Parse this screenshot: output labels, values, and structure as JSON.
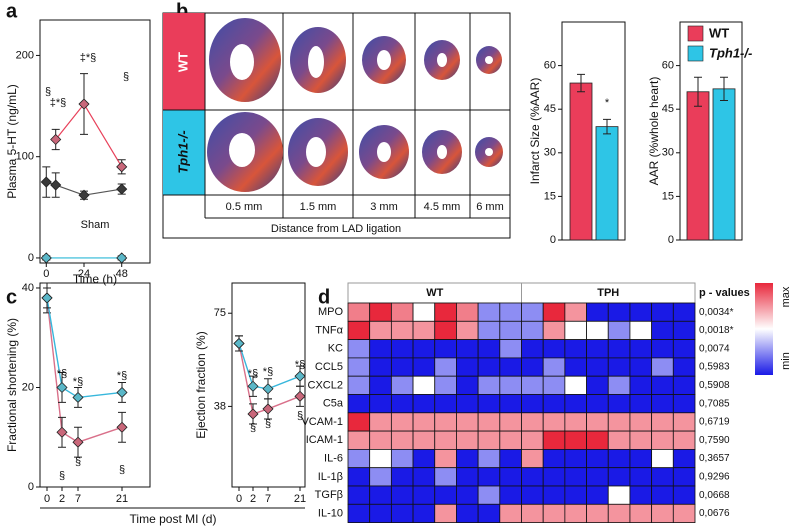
{
  "panel_labels": [
    "a",
    "b",
    "c",
    "d"
  ],
  "heart_panel": {
    "rows": [
      "WT",
      "Tph1-/-"
    ],
    "distances": [
      "0.5 mm",
      "1.5 mm",
      "3 mm",
      "4.5 mm",
      "6 mm"
    ],
    "caption": "Distance from LAD ligation"
  },
  "chart_data": [
    {
      "type": "line",
      "ylabel": "Plasma 5-HT (ng/mL)",
      "xlabel": "Time (h)",
      "xlim": [
        -4,
        66
      ],
      "ylim": [
        -5,
        235
      ],
      "xticks": [
        0,
        24,
        48
      ],
      "yticks": [
        0,
        100,
        200
      ],
      "series": [
        {
          "color": "#555555",
          "marker_color": "#3a3a3a",
          "x": [
            0,
            6,
            24,
            48
          ],
          "values": [
            75,
            72,
            62,
            68
          ],
          "errors": [
            15,
            12,
            4,
            5
          ]
        },
        {
          "color": "#e8415a",
          "marker_color": "#c9677a",
          "x": [
            6,
            24,
            48
          ],
          "values": [
            117,
            152,
            90
          ],
          "errors": [
            10,
            30,
            7
          ]
        },
        {
          "color": "#2bb8d6",
          "marker_color": "#5ab7c8",
          "x": [
            0,
            48
          ],
          "values": [
            0,
            0
          ],
          "errors": [
            2,
            2
          ]
        }
      ],
      "annotations": [
        "§",
        "‡*§",
        "‡*§",
        "§",
        "Sham"
      ]
    },
    {
      "type": "bar",
      "ylabel": "Infarct Size (%AAR)",
      "ylim": [
        0,
        75
      ],
      "yticks": [
        0,
        15,
        30,
        45,
        60
      ],
      "series": [
        {
          "name": "WT",
          "color": "#ea3d5a",
          "values": [
            54
          ],
          "errors": [
            3
          ]
        },
        {
          "name": "Tph1-/-",
          "color": "#2ec5e6",
          "values": [
            39
          ],
          "errors": [
            2.5
          ]
        }
      ],
      "annotations": [
        "*"
      ]
    },
    {
      "type": "bar",
      "ylabel": "AAR (%whole heart)",
      "ylim": [
        0,
        75
      ],
      "yticks": [
        0,
        15,
        30,
        45,
        60
      ],
      "series": [
        {
          "color": "#ea3d5a",
          "values": [
            51
          ],
          "errors": [
            5
          ]
        },
        {
          "color": "#2ec5e6",
          "values": [
            52
          ],
          "errors": [
            4
          ]
        }
      ]
    },
    {
      "type": "catline",
      "ylabel": "Fractional shortening (%)",
      "categories": [
        "0",
        "2",
        "7",
        "21"
      ],
      "ylim": [
        0,
        41
      ],
      "yticks": [
        0,
        20,
        40
      ],
      "series": [
        {
          "color": "#d9708a",
          "marker_color": "#c9677a",
          "values": [
            38,
            11,
            9,
            12
          ],
          "errors": [
            3,
            3,
            3,
            3
          ]
        },
        {
          "color": "#37b7dc",
          "marker_color": "#5ab7c8",
          "values": [
            38,
            20,
            18,
            19
          ],
          "errors": [
            2,
            3,
            2,
            2
          ]
        }
      ],
      "annotations": [
        "*§",
        "*§",
        "*§",
        "§",
        "§",
        "§"
      ]
    },
    {
      "type": "catline",
      "ylabel": "Ejection fraction (%)",
      "categories": [
        "0",
        "2",
        "7",
        "21"
      ],
      "ylim": [
        6,
        87
      ],
      "yticks": [
        38,
        75
      ],
      "series": [
        {
          "color": "#d9708a",
          "marker_color": "#c9677a",
          "values": [
            63,
            35,
            37,
            42
          ],
          "errors": [
            3,
            4,
            4,
            4
          ]
        },
        {
          "color": "#37b7dc",
          "marker_color": "#5ab7c8",
          "values": [
            63,
            46,
            45,
            50
          ],
          "errors": [
            3,
            4,
            4,
            4
          ]
        }
      ],
      "annotations": [
        "*§",
        "*§",
        "*§",
        "§",
        "§",
        "§"
      ],
      "xlabel": "Time post MI (d)"
    },
    {
      "type": "heatmap",
      "groups": [
        "WT",
        "TPH"
      ],
      "rows": [
        "MPO",
        "TNFα",
        "KC",
        "CCL5",
        "CXCL2",
        "C5a",
        "VCAM-1",
        "ICAM-1",
        "IL-6",
        "IL-1β",
        "TGFβ",
        "IL-10"
      ],
      "p_values_title": "p - values",
      "p_values": [
        "0,0034*",
        "0,0018*",
        "0,0074",
        "0,5983",
        "0,5908",
        "0,7085",
        "0,6719",
        "0,7590",
        "0,3657",
        "0,9296",
        "0,0668",
        "0,0676"
      ],
      "zlim": [
        0,
        1
      ],
      "colorbar_ticks": [
        {
          "value": 1,
          "label": "max"
        },
        {
          "value": 0,
          "label": "min"
        }
      ],
      "values": [
        [
          0.8,
          1,
          0.8,
          0.5,
          1,
          0.8,
          0.25,
          0.25,
          0.25,
          1,
          0.75,
          0,
          0,
          0,
          0,
          0
        ],
        [
          1,
          0.75,
          0.75,
          0.75,
          1,
          0.75,
          0.25,
          0.25,
          0.25,
          0.75,
          0.5,
          0.5,
          0.25,
          0.5,
          0,
          0
        ],
        [
          0.25,
          0,
          0,
          0,
          0,
          0,
          0,
          0.25,
          0,
          0,
          0,
          0,
          0,
          0,
          0,
          0
        ],
        [
          0.25,
          0,
          0,
          0,
          0.25,
          0,
          0,
          0,
          0,
          0.25,
          0,
          0,
          0,
          0,
          0.25,
          0
        ],
        [
          0.25,
          0,
          0.25,
          0.5,
          0.25,
          0,
          0.25,
          0.25,
          0.25,
          0.25,
          0.5,
          0,
          0.25,
          0,
          0,
          0
        ],
        [
          0,
          0,
          0,
          0,
          0,
          0,
          0,
          0,
          0,
          0,
          0,
          0,
          0,
          0,
          0,
          0
        ],
        [
          1,
          0.75,
          0.75,
          0.75,
          0.75,
          0.75,
          0.75,
          0.75,
          0.75,
          0.75,
          0.75,
          0.75,
          0.75,
          0.75,
          0.75,
          0.75
        ],
        [
          0.75,
          0.75,
          0.75,
          0.75,
          0.75,
          0.75,
          0.75,
          0.75,
          0.75,
          1,
          1,
          1,
          0.75,
          0.75,
          0.75,
          0.75
        ],
        [
          0.25,
          0.5,
          0.25,
          0,
          0.75,
          0,
          0.25,
          0,
          0.75,
          0,
          0,
          0,
          0,
          0,
          0.5,
          0
        ],
        [
          0,
          0.25,
          0,
          0,
          0.25,
          0,
          0,
          0,
          0,
          0,
          0,
          0,
          0,
          0,
          0,
          0
        ],
        [
          0,
          0,
          0,
          0,
          0,
          0,
          0.25,
          0,
          0,
          0,
          0,
          0,
          0.5,
          0,
          0,
          0
        ],
        [
          0,
          0,
          0,
          0,
          0.75,
          0,
          0,
          0.75,
          0.75,
          0.75,
          0.75,
          0.75,
          0.75,
          0.75,
          0.75,
          0.75
        ]
      ]
    }
  ]
}
